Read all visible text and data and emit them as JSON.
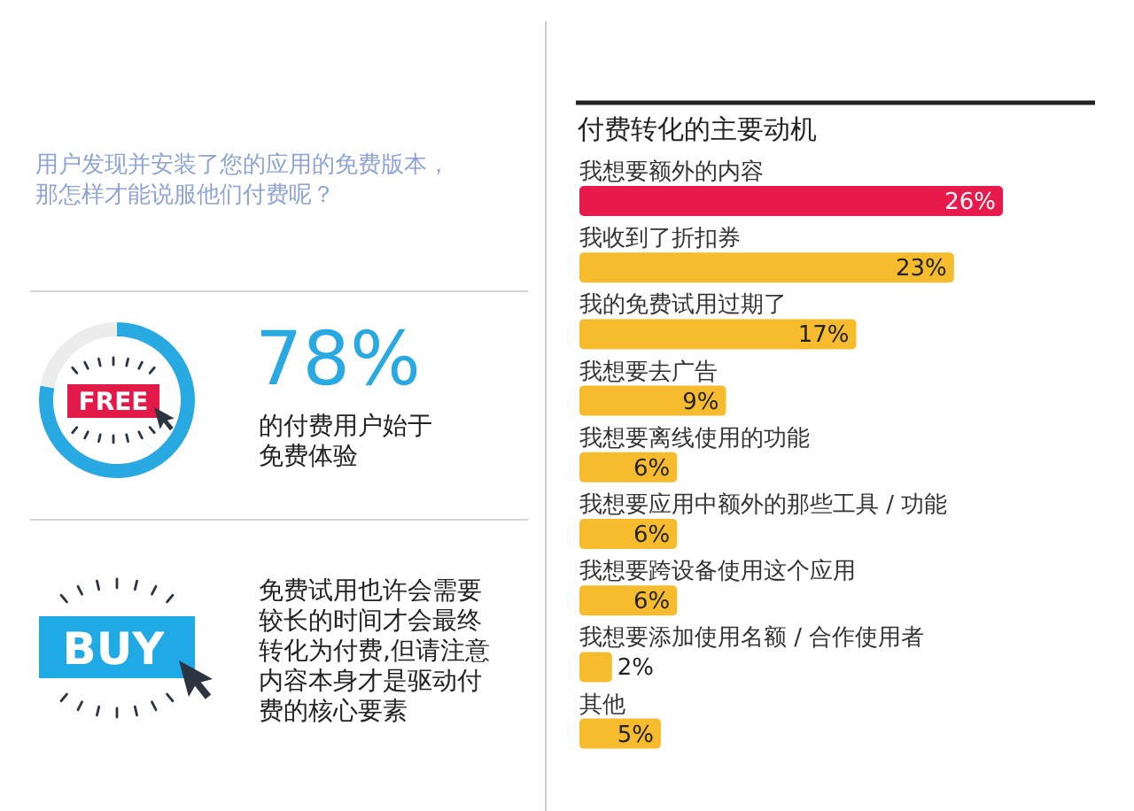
{
  "chart_data": [
    {
      "type": "other",
      "title": "用户发现并安装了您的应用的免费版本，那怎样才能说服他们付费呢？",
      "annotations": [
        "BUY",
        "免费试用也许会需要较长的时间才会最终转化为付费,但请注意内容本身才是驱动付费的核心要素"
      ]
    },
    {
      "type": "donut",
      "categories": [
        null,
        null
      ],
      "values": [
        78,
        22
      ],
      "colors": [
        "#29a9e1",
        "#ececec"
      ],
      "value_labels": [
        "78%",
        null
      ],
      "annotations": [
        "FREE",
        "的付费用户始于免费体验"
      ]
    },
    {
      "type": "bar",
      "orientation": "horizontal",
      "title": "付费转化的主要动机",
      "categories": [
        "我想要额外的内容",
        "我收到了折扣券",
        "我的免费试用过期了",
        "我想要去广告",
        "我想要离线使用的功能",
        "我想要应用中额外的那些工具 / 功能",
        "我想要跨设备使用这个应用",
        "我想要添加使用名额 / 合作使用者",
        "其他"
      ],
      "values": [
        26,
        23,
        17,
        9,
        6,
        6,
        6,
        2,
        5
      ],
      "colors": [
        "#e8194b",
        "#f7bc2d",
        "#f7bc2d",
        "#f7bc2d",
        "#f7bc2d",
        "#f7bc2d",
        "#f7bc2d",
        "#f7bc2d",
        "#f7bc2d"
      ],
      "value_labels": [
        "26%",
        "23%",
        "17%",
        "9%",
        "6%",
        "6%",
        "6%",
        "2%",
        "5%"
      ]
    }
  ]
}
